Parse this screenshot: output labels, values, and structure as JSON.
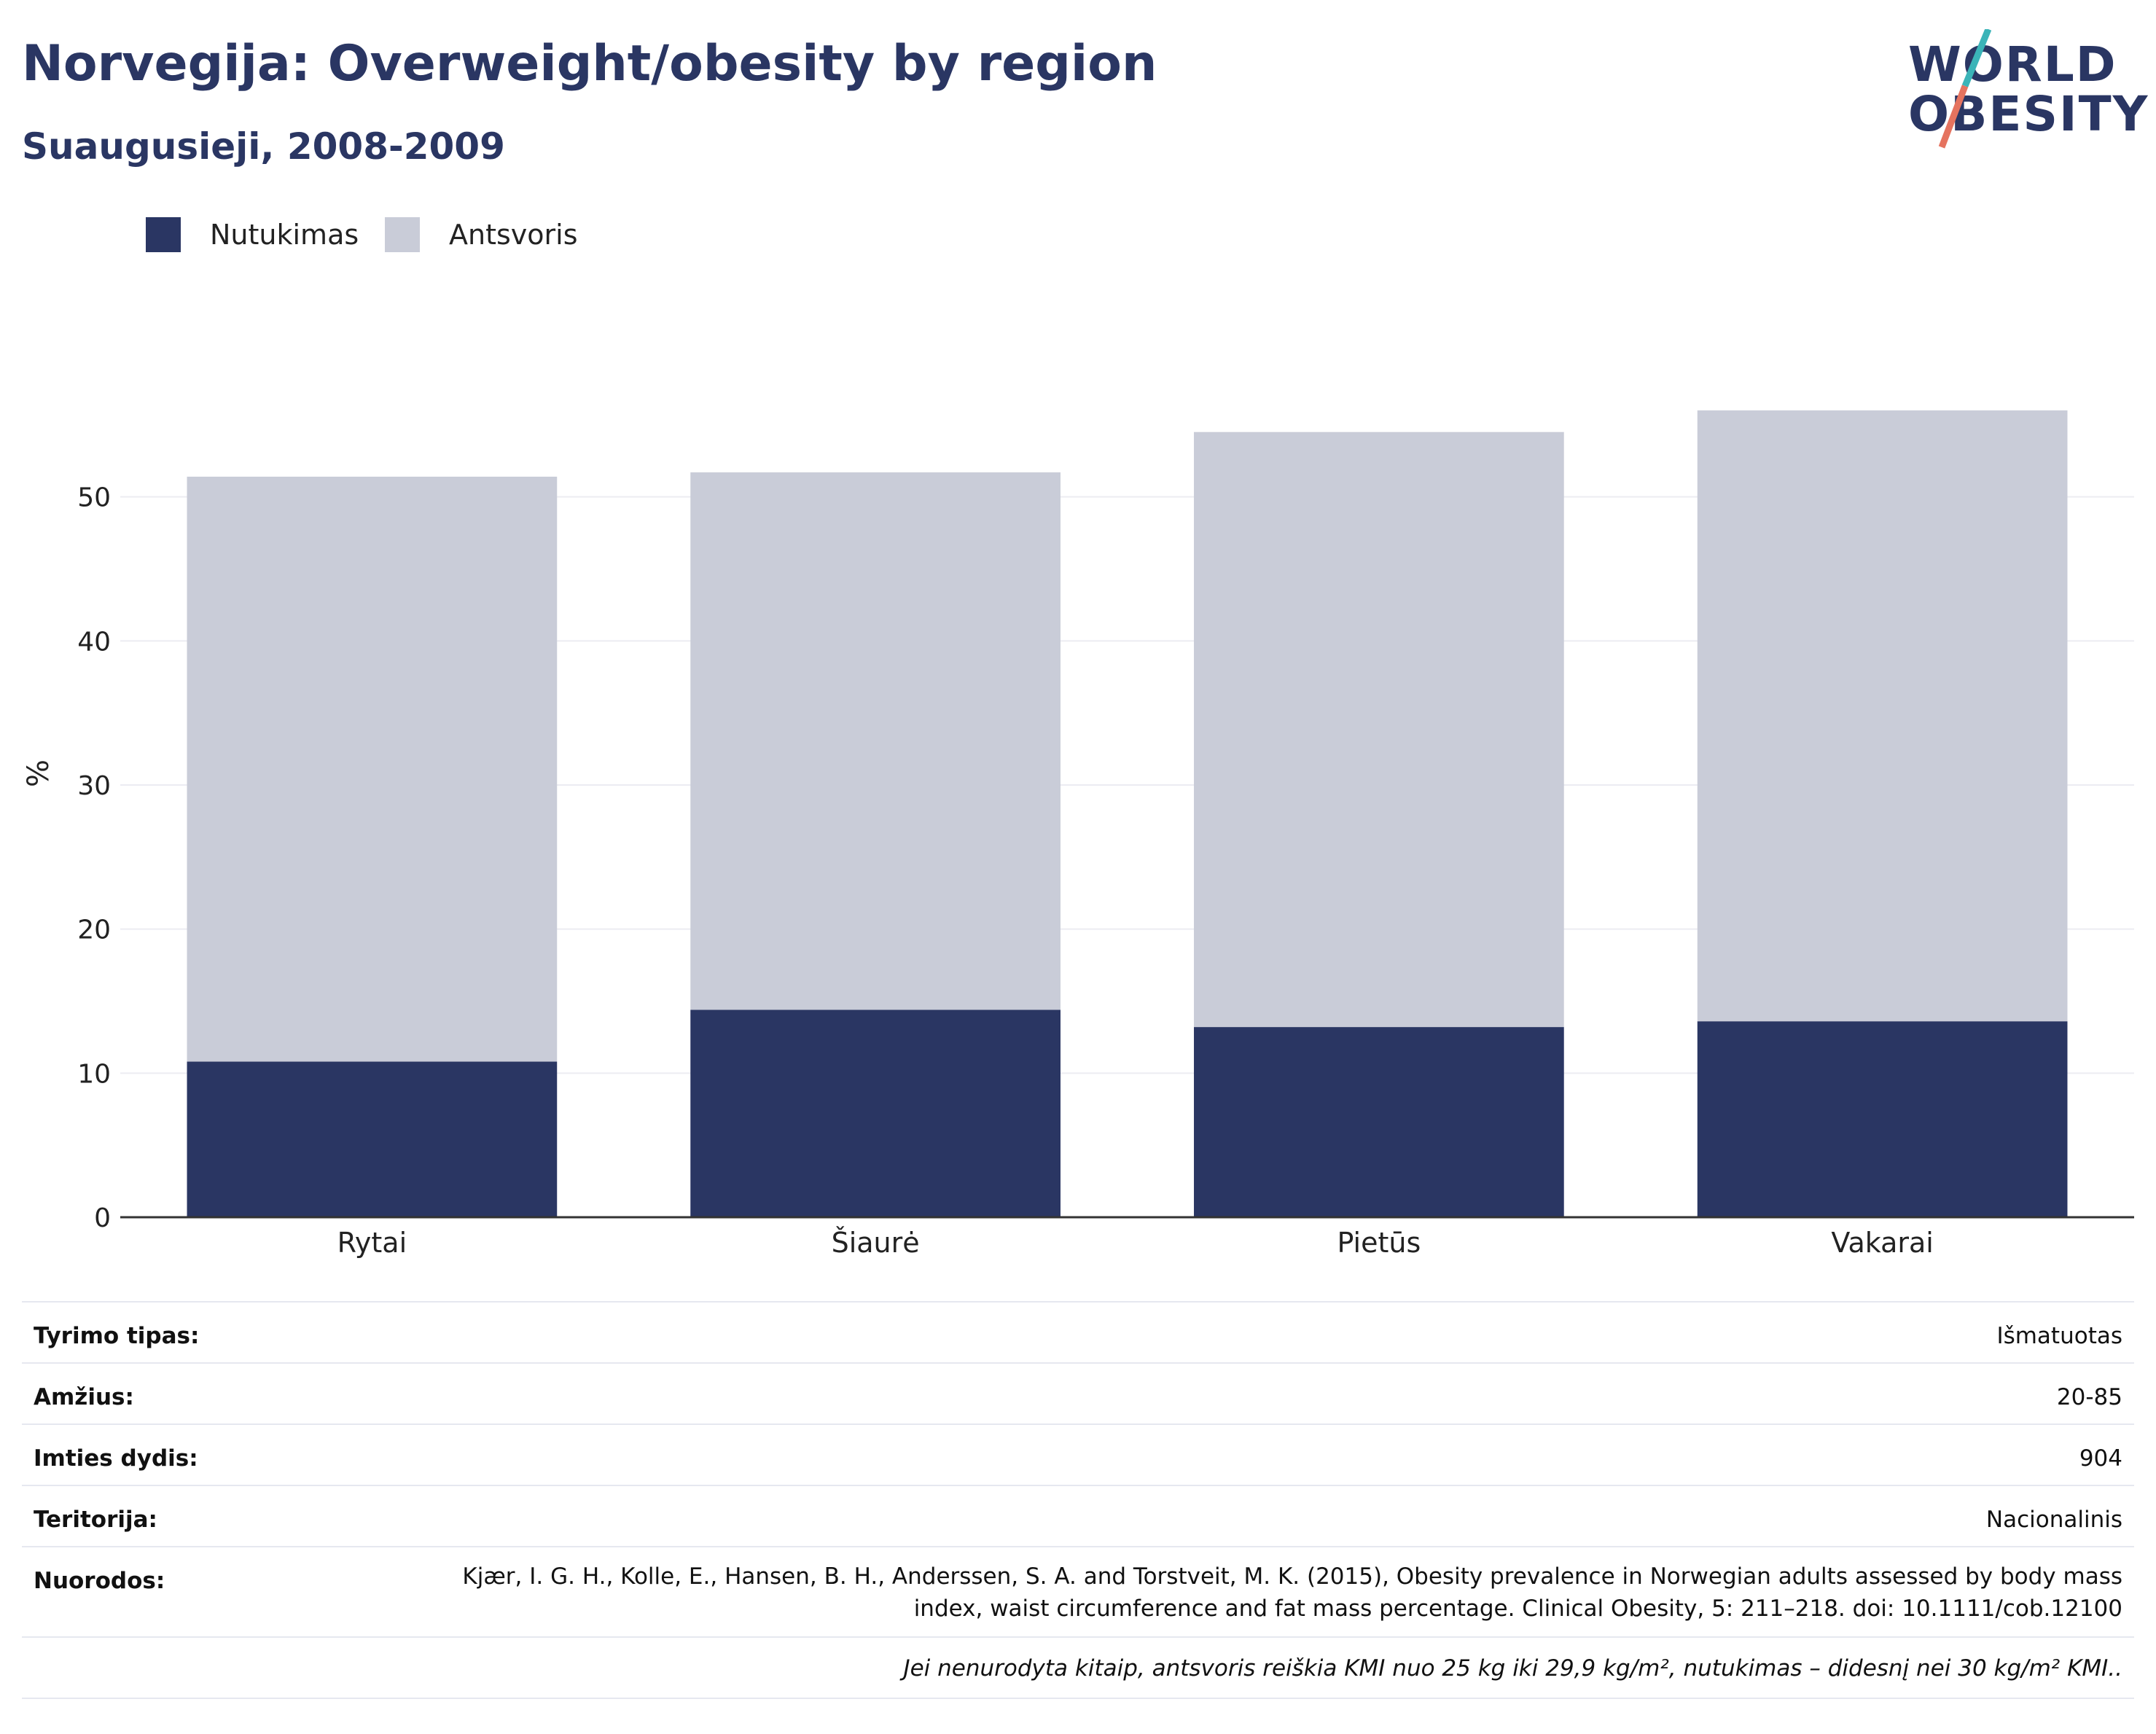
{
  "title": "Norvegija: Overweight/obesity by region",
  "subtitle": "Suaugusieji, 2008-2009",
  "logo": {
    "line1": "WORLD",
    "line2": "OBESITY"
  },
  "legend": [
    {
      "label": "Nutukimas",
      "color": "#2a3663"
    },
    {
      "label": "Antsvoris",
      "color": "#c9ccd8"
    }
  ],
  "chart_data": {
    "type": "bar",
    "stacked": true,
    "categories": [
      "Rytai",
      "Šiaurė",
      "Pietūs",
      "Vakarai"
    ],
    "series": [
      {
        "name": "Nutukimas",
        "values": [
          10.8,
          14.4,
          13.2,
          13.6
        ],
        "color": "#2a3663"
      },
      {
        "name": "Antsvoris",
        "values": [
          40.6,
          37.3,
          41.3,
          42.4
        ],
        "color": "#c9ccd8"
      }
    ],
    "ylabel": "%",
    "ylim": [
      0,
      60
    ],
    "yticks": [
      0,
      10,
      20,
      30,
      40,
      50
    ],
    "grid": true,
    "legend_position": "top-left"
  },
  "info": {
    "survey_type": {
      "label": "Tyrimo tipas:",
      "value": "Išmatuotas"
    },
    "age": {
      "label": "Amžius:",
      "value": "20-85"
    },
    "sample_size": {
      "label": "Imties dydis:",
      "value": "904"
    },
    "territory": {
      "label": "Teritorija:",
      "value": "Nacionalinis"
    },
    "references": {
      "label": "Nuorodos:",
      "value": "Kjær, I. G. H., Kolle, E., Hansen, B. H., Anderssen, S. A. and Torstveit, M. K. (2015), Obesity prevalence in Norwegian adults assessed by body mass index, waist circumference and fat mass percentage. Clinical Obesity, 5: 211–218. doi: 10.1111/cob.12100"
    },
    "note": "Jei nenurodyta kitaip, antsvoris reiškia KMI nuo 25 kg iki 29,9 kg/m², nutukimas – didesnį nei 30 kg/m² KMI.."
  }
}
